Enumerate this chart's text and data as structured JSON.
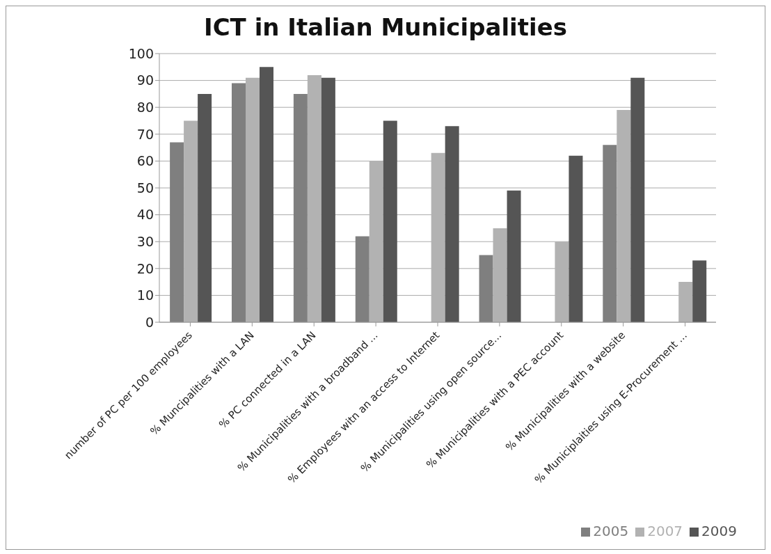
{
  "chart_data": {
    "type": "bar",
    "title": "ICT in Italian Municipalities",
    "categories": [
      "number of PC per 100 employees",
      "% Muncipalities with a LAN",
      "% PC connected in a LAN",
      "% Municipalities with a broadband ...",
      "% Employees witn an access to Internet",
      "% Municipalities using open source...",
      "% Municipalities with a PEC account",
      "% Municipalities with a website",
      "% Municiplaities using E-Procurement ..."
    ],
    "series": [
      {
        "name": "2005",
        "color": "#7f7f7f",
        "values": [
          67,
          89,
          85,
          32,
          null,
          25,
          null,
          66,
          null
        ]
      },
      {
        "name": "2007",
        "color": "#b2b2b2",
        "values": [
          75,
          91,
          92,
          60,
          63,
          35,
          30,
          79,
          15
        ]
      },
      {
        "name": "2009",
        "color": "#555555",
        "values": [
          85,
          95,
          91,
          75,
          73,
          49,
          62,
          91,
          23
        ]
      }
    ],
    "ylim": [
      0,
      100
    ],
    "yticks": [
      0,
      10,
      20,
      30,
      40,
      50,
      60,
      70,
      80,
      90,
      100
    ],
    "grid": "y",
    "legend": "bottom right"
  }
}
